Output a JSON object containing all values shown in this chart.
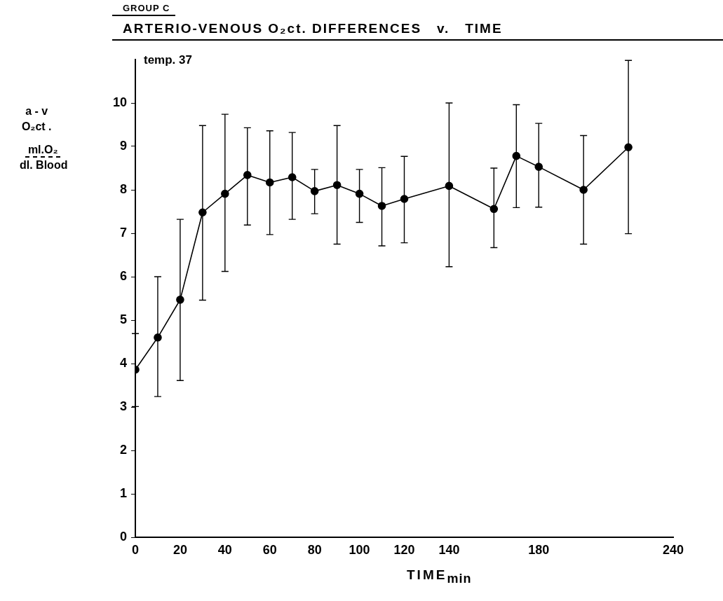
{
  "chart_data": {
    "type": "line",
    "subtitle": "GROUP C",
    "title": "ARTERIO-VENOUS O₂ct. DIFFERENCES   v.   TIME",
    "xlabel": "TIME$_{min}$",
    "ylabel": "a - v\nO₂ct .\nml.O₂\ndl. Blood",
    "annotations": [
      "temp. 37"
    ],
    "x": [
      0,
      10,
      20,
      30,
      40,
      50,
      60,
      70,
      80,
      90,
      100,
      110,
      120,
      140,
      160,
      170,
      180,
      200,
      220
    ],
    "series": [
      {
        "color": "#000000",
        "values": [
          3.86,
          4.6,
          5.47,
          7.48,
          7.91,
          8.34,
          8.17,
          8.29,
          7.97,
          8.11,
          7.91,
          7.63,
          7.79,
          8.09,
          7.56,
          8.78,
          8.53,
          8.0,
          8.98
        ],
        "errors": [
          [
            3.01,
            4.69
          ],
          [
            3.24,
            6.0
          ],
          [
            3.61,
            7.32
          ],
          [
            5.46,
            9.48
          ],
          [
            6.12,
            9.74
          ],
          [
            7.19,
            9.43
          ],
          [
            6.97,
            9.36
          ],
          [
            7.32,
            9.32
          ],
          [
            7.45,
            8.47
          ],
          [
            6.75,
            9.48
          ],
          [
            7.25,
            8.47
          ],
          [
            6.71,
            8.51
          ],
          [
            6.78,
            8.77
          ],
          [
            6.23,
            10.0
          ],
          [
            6.67,
            8.5
          ],
          [
            7.59,
            9.96
          ],
          [
            7.6,
            9.53
          ],
          [
            6.75,
            9.25
          ],
          [
            6.99,
            10.98
          ]
        ]
      }
    ],
    "xlim": [
      0,
      240
    ],
    "xticks": [
      0,
      20,
      40,
      60,
      80,
      100,
      120,
      140,
      180,
      240
    ],
    "ylim": [
      0,
      11
    ],
    "yticks": [
      0,
      1,
      2,
      3,
      4,
      5,
      6,
      7,
      8,
      9,
      10
    ],
    "grid": false,
    "legend": false,
    "marker": "circle",
    "line_style": "solid"
  }
}
